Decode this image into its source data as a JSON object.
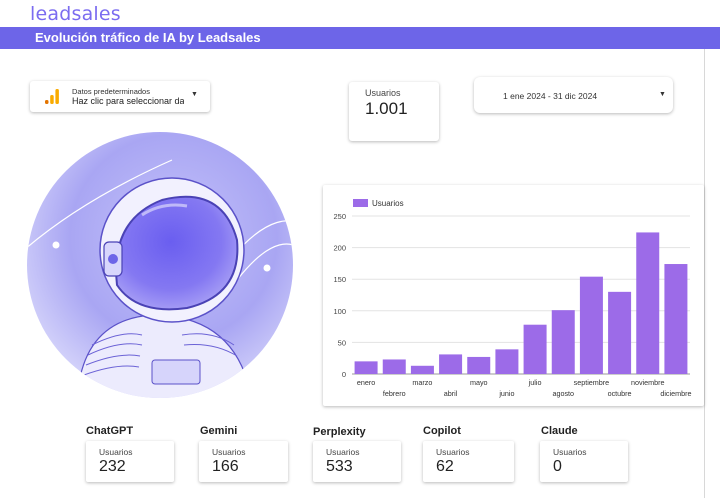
{
  "header": {
    "logo_text": "leadsales",
    "title": "Evolución tráfico de IA by Leadsales",
    "banner_color": "#6d65e8"
  },
  "controls": {
    "data_source": {
      "title": "Datos predeterminados",
      "subtitle": "Haz clic para seleccionar dat",
      "icon": "analytics-bars-icon"
    },
    "date_range": "1 ene 2024 - 31 dic 2024"
  },
  "kpi": {
    "label": "Usuarios",
    "value": "1.001"
  },
  "chart_data": {
    "type": "bar",
    "legend": "Usuarios",
    "color": "#9c6be8",
    "categories": [
      "enero",
      "febrero",
      "marzo",
      "abril",
      "mayo",
      "junio",
      "julio",
      "agosto",
      "septiembre",
      "octubre",
      "noviembre",
      "diciembre"
    ],
    "values": [
      20,
      23,
      13,
      31,
      27,
      39,
      78,
      101,
      154,
      130,
      224,
      174
    ],
    "yticks": [
      0,
      50,
      100,
      150,
      200,
      250
    ],
    "ylim": [
      0,
      250
    ],
    "grid": true,
    "legend_position": "top-left"
  },
  "models": [
    {
      "name": "ChatGPT",
      "label": "Usuarios",
      "value": "232"
    },
    {
      "name": "Gemini",
      "label": "Usuarios",
      "value": "166"
    },
    {
      "name": "Perplexity",
      "label": "Usuarios",
      "value": "533"
    },
    {
      "name": "Copilot",
      "label": "Usuarios",
      "value": "62"
    },
    {
      "name": "Claude",
      "label": "Usuarios",
      "value": "0"
    }
  ]
}
